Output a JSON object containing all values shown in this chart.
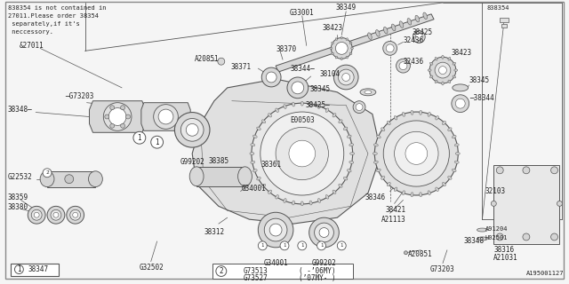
{
  "bg_color": "#f5f5f5",
  "line_color": "#555555",
  "text_color": "#222222",
  "diagram_id": "A195001127",
  "note_lines": [
    "838354 is not contained in",
    "27011.Please order 38354",
    " separately,if it's",
    " neccessory."
  ],
  "legend_rows": [
    {
      "code": "G73513",
      "desc": "( -’06MY)"
    },
    {
      "code": "G73527",
      "desc": "(’07MY- )"
    }
  ]
}
